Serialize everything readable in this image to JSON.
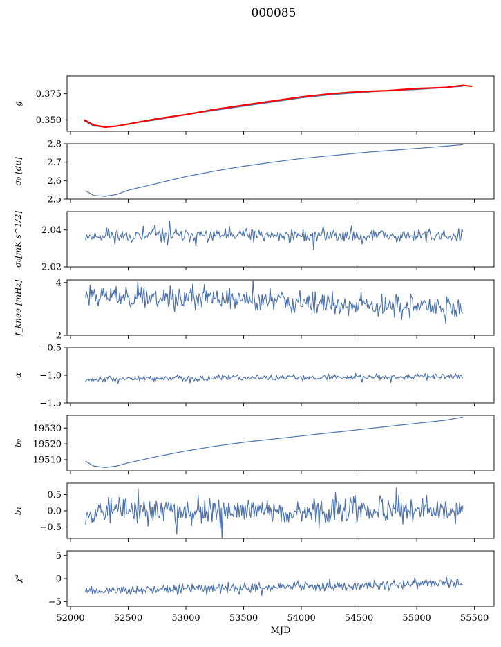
{
  "title": "000085",
  "colors": {
    "series": "#4c72b0",
    "overlay": "#ff0000",
    "axis": "#000000"
  },
  "chart_data": [
    {
      "type": "line",
      "ylabel": "g",
      "xlim": [
        51970,
        55670
      ],
      "ylim": [
        0.339,
        0.392
      ],
      "yticks": [
        0.35,
        0.375
      ],
      "ytick_labels": [
        "0.350",
        "0.375"
      ],
      "series": [
        {
          "kind": "line",
          "color": "#4c72b0",
          "x": [
            52120,
            52200,
            52300,
            52400,
            52500,
            52750,
            53000,
            53250,
            53500,
            53750,
            54000,
            54250,
            54500,
            54750,
            55000,
            55250,
            55400
          ],
          "y": [
            0.349,
            0.344,
            0.343,
            0.344,
            0.346,
            0.35,
            0.355,
            0.359,
            0.363,
            0.367,
            0.371,
            0.374,
            0.376,
            0.378,
            0.379,
            0.381,
            0.382
          ]
        },
        {
          "kind": "line",
          "color": "#ff0000",
          "x": [
            52120,
            52200,
            52300,
            52400,
            52500,
            52750,
            53000,
            53250,
            53500,
            53750,
            54000,
            54250,
            54500,
            54750,
            55000,
            55250,
            55400,
            55480
          ],
          "y": [
            0.35,
            0.345,
            0.343,
            0.344,
            0.346,
            0.351,
            0.355,
            0.36,
            0.364,
            0.368,
            0.372,
            0.375,
            0.377,
            0.378,
            0.38,
            0.381,
            0.383,
            0.382
          ]
        }
      ]
    },
    {
      "type": "line",
      "ylabel": "σ₀ [du]",
      "xlim": [
        51970,
        55670
      ],
      "ylim": [
        2.5,
        2.8
      ],
      "yticks": [
        2.5,
        2.6,
        2.7,
        2.8
      ],
      "ytick_labels": [
        "2.5",
        "2.6",
        "2.7",
        "2.8"
      ],
      "series": [
        {
          "kind": "line",
          "color": "#4c72b0",
          "x": [
            52130,
            52200,
            52300,
            52400,
            52500,
            52750,
            53000,
            53250,
            53500,
            53750,
            54000,
            54250,
            54500,
            54750,
            55000,
            55250,
            55400
          ],
          "y": [
            2.545,
            2.52,
            2.515,
            2.525,
            2.548,
            2.585,
            2.622,
            2.652,
            2.678,
            2.7,
            2.72,
            2.735,
            2.75,
            2.763,
            2.775,
            2.787,
            2.795
          ]
        }
      ]
    },
    {
      "type": "line",
      "ylabel": "σ₀[mK s^1/2]",
      "xlim": [
        51970,
        55670
      ],
      "ylim": [
        2.02,
        2.05
      ],
      "yticks": [
        2.02,
        2.04
      ],
      "ytick_labels": [
        "2.02",
        "2.04"
      ],
      "series": [
        {
          "kind": "noise",
          "color": "#4c72b0",
          "start": 52130,
          "end": 55400,
          "n": 360,
          "base": [
            2.037,
            2.037
          ],
          "amp": 0.0028,
          "spike": 0.0055,
          "seed": 11
        }
      ]
    },
    {
      "type": "line",
      "ylabel": "f_knee [mHz]",
      "xlim": [
        51970,
        55670
      ],
      "ylim": [
        2.0,
        4.1
      ],
      "yticks": [
        2,
        4
      ],
      "ytick_labels": [
        "2",
        "4"
      ],
      "series": [
        {
          "kind": "noise",
          "color": "#4c72b0",
          "start": 52130,
          "end": 55400,
          "n": 420,
          "base": [
            3.55,
            3.0
          ],
          "amp": 0.3,
          "spike": 0.55,
          "seed": 23
        }
      ]
    },
    {
      "type": "line",
      "ylabel": "α",
      "xlim": [
        51970,
        55670
      ],
      "ylim": [
        -1.5,
        -0.5
      ],
      "yticks": [
        -1.5,
        -1.0,
        -0.5
      ],
      "ytick_labels": [
        "−1.5",
        "−1.0",
        "−0.5"
      ],
      "series": [
        {
          "kind": "noise",
          "color": "#4c72b0",
          "start": 52130,
          "end": 55400,
          "n": 420,
          "base": [
            -1.07,
            -1.02
          ],
          "amp": 0.035,
          "spike": 0.07,
          "seed": 37
        }
      ]
    },
    {
      "type": "line",
      "ylabel": "b₀",
      "xlim": [
        51970,
        55670
      ],
      "ylim": [
        19503,
        19538
      ],
      "yticks": [
        19510,
        19520,
        19530
      ],
      "ytick_labels": [
        "19510",
        "19520",
        "19530"
      ],
      "series": [
        {
          "kind": "line",
          "color": "#4c72b0",
          "x": [
            52130,
            52200,
            52300,
            52400,
            52500,
            52750,
            53000,
            53250,
            53500,
            53750,
            54000,
            54250,
            54500,
            54750,
            55000,
            55250,
            55400
          ],
          "y": [
            19509,
            19506,
            19505,
            19506,
            19508,
            19512,
            19515.5,
            19518.5,
            19521,
            19523,
            19525,
            19527,
            19529,
            19531,
            19533,
            19535,
            19537
          ]
        }
      ]
    },
    {
      "type": "line",
      "ylabel": "b₁",
      "xlim": [
        51970,
        55670
      ],
      "ylim": [
        -0.85,
        0.85
      ],
      "yticks": [
        -0.5,
        0.0,
        0.5
      ],
      "ytick_labels": [
        "−0.5",
        "0.0",
        "0.5"
      ],
      "series": [
        {
          "kind": "noise",
          "color": "#4c72b0",
          "start": 52130,
          "end": 55400,
          "n": 460,
          "base": [
            0.0,
            0.0
          ],
          "amp": 0.3,
          "spike": 0.7,
          "seed": 53
        }
      ]
    },
    {
      "type": "line",
      "ylabel": "χ²",
      "xlim": [
        51970,
        55670
      ],
      "ylim": [
        -6,
        6
      ],
      "yticks": [
        -5,
        0,
        5
      ],
      "ytick_labels": [
        "−5",
        "0",
        "5"
      ],
      "xticks": [
        52000,
        52500,
        53000,
        53500,
        54000,
        54500,
        55000,
        55500
      ],
      "xtick_labels": [
        "52000",
        "52500",
        "53000",
        "53500",
        "54000",
        "54500",
        "55000",
        "55500"
      ],
      "xlabel": "MJD",
      "series": [
        {
          "kind": "noise",
          "color": "#4c72b0",
          "start": 52130,
          "end": 55400,
          "n": 440,
          "base": [
            -2.8,
            -1.0
          ],
          "amp": 0.7,
          "spike": 1.6,
          "seed": 71
        }
      ]
    }
  ]
}
